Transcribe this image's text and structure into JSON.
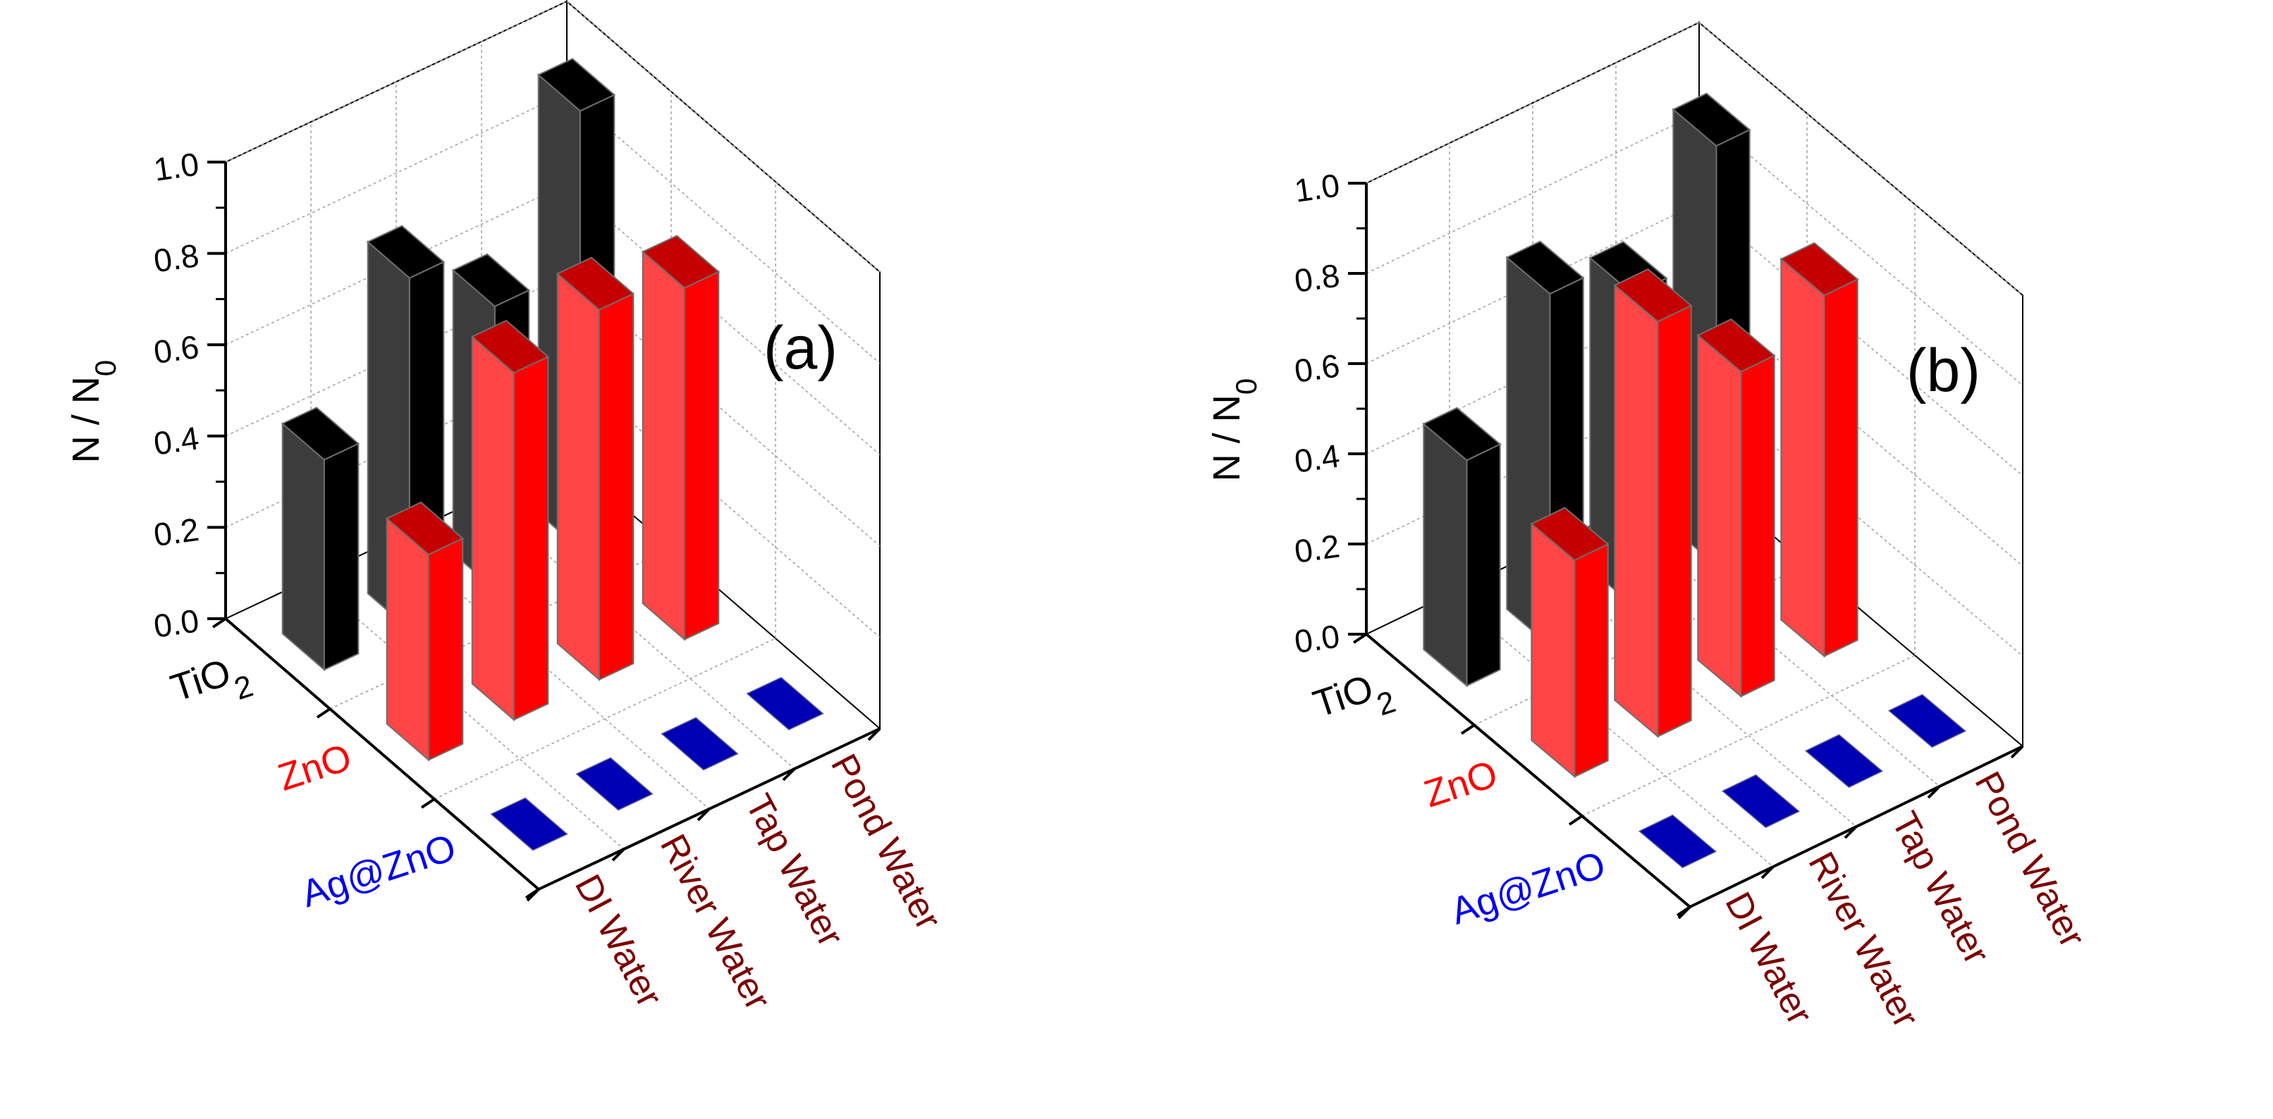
{
  "colors": {
    "TiO2": {
      "front": "#000000",
      "side": "#3c3c3c",
      "top": "#000000"
    },
    "ZnO": {
      "front": "#ff0000",
      "side": "#ff4545",
      "top": "#c40000"
    },
    "AgZnO": {
      "front": "#0000b4",
      "side": "#0000b4",
      "top": "#0000b4"
    },
    "axis": "#000000",
    "grid": "#a0a0a0",
    "bar_edge": "#6e6e6e",
    "water_label": "#7b0000",
    "zno_label": "#ff0000",
    "agzno_label": "#0000ee"
  },
  "chart_data": [
    {
      "type": "bar3d",
      "panel_label": "(a)",
      "ylabel": {
        "main": "N / N",
        "sub": "0"
      },
      "ylim": [
        0,
        1
      ],
      "yticks": [
        "0.0",
        "0.2",
        "0.4",
        "0.6",
        "0.8",
        "1.0"
      ],
      "categories": [
        "DI Water",
        "River Water",
        "Tap Water",
        "Pond Water"
      ],
      "series": [
        {
          "name": "TiO2",
          "label_main": "TiO",
          "label_sub": "2",
          "color_key": "TiO2",
          "values": [
            0.46,
            0.77,
            0.62,
            0.96
          ]
        },
        {
          "name": "ZnO",
          "label_main": "ZnO",
          "label_sub": "",
          "color_key": "ZnO",
          "values": [
            0.45,
            0.76,
            0.81,
            0.77
          ]
        },
        {
          "name": "Ag@ZnO",
          "label_main": "Ag@ZnO",
          "label_sub": "",
          "color_key": "AgZnO",
          "values": [
            0,
            0,
            0,
            0
          ]
        }
      ]
    },
    {
      "type": "bar3d",
      "panel_label": "(b)",
      "ylabel": {
        "main": "N / N",
        "sub": "0"
      },
      "ylim": [
        0,
        1
      ],
      "yticks": [
        "0.0",
        "0.2",
        "0.4",
        "0.6",
        "0.8",
        "1.0"
      ],
      "categories": [
        "DI Water",
        "River Water",
        "Tap Water",
        "Pond Water"
      ],
      "series": [
        {
          "name": "TiO2",
          "label_main": "TiO",
          "label_sub": "2",
          "color_key": "TiO2",
          "values": [
            0.5,
            0.78,
            0.69,
            0.93
          ]
        },
        {
          "name": "ZnO",
          "label_main": "ZnO",
          "label_sub": "",
          "color_key": "ZnO",
          "values": [
            0.48,
            0.92,
            0.72,
            0.8
          ]
        },
        {
          "name": "Ag@ZnO",
          "label_main": "Ag@ZnO",
          "label_sub": "",
          "color_key": "AgZnO",
          "values": [
            0,
            0,
            0,
            0
          ]
        }
      ]
    }
  ]
}
